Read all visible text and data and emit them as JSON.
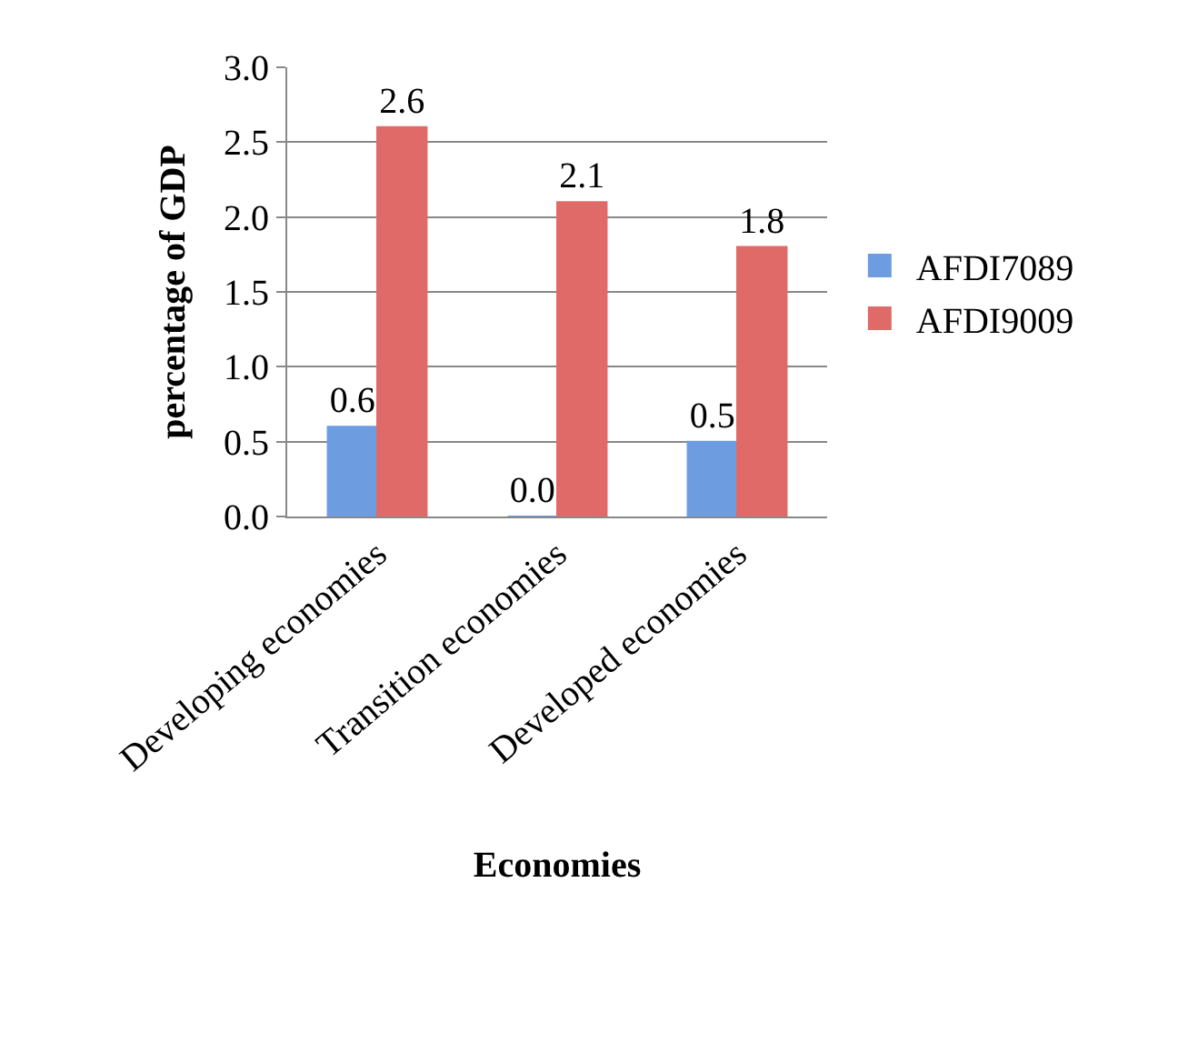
{
  "chart_data": {
    "type": "bar",
    "xlabel": "Economies",
    "ylabel": "percentage of GDP",
    "categories": [
      "Developing economies",
      "Transition economies",
      "Developed economies"
    ],
    "series": [
      {
        "name": "AFDI7089",
        "color": "#6d9de0",
        "values": [
          0.6,
          0.0,
          0.5
        ],
        "value_labels": [
          "0.6",
          "0.0",
          "0.5"
        ]
      },
      {
        "name": "AFDI9009",
        "color": "#e06a68",
        "values": [
          2.6,
          2.1,
          1.8
        ]
      }
    ],
    "ylim": [
      0,
      3.0
    ],
    "yticks": [
      {
        "value": 0,
        "label": "0.0"
      },
      {
        "value": 0.5,
        "label": "0.5"
      },
      {
        "value": 1.0,
        "label": "1.0"
      },
      {
        "value": 1.5,
        "label": "1.5"
      },
      {
        "value": 2.0,
        "label": "2.0"
      },
      {
        "value": 2.5,
        "label": "2.5"
      },
      {
        "value": 3.0,
        "label": "3.0"
      }
    ],
    "grid": "y",
    "legend": "right",
    "data_labels": true
  }
}
